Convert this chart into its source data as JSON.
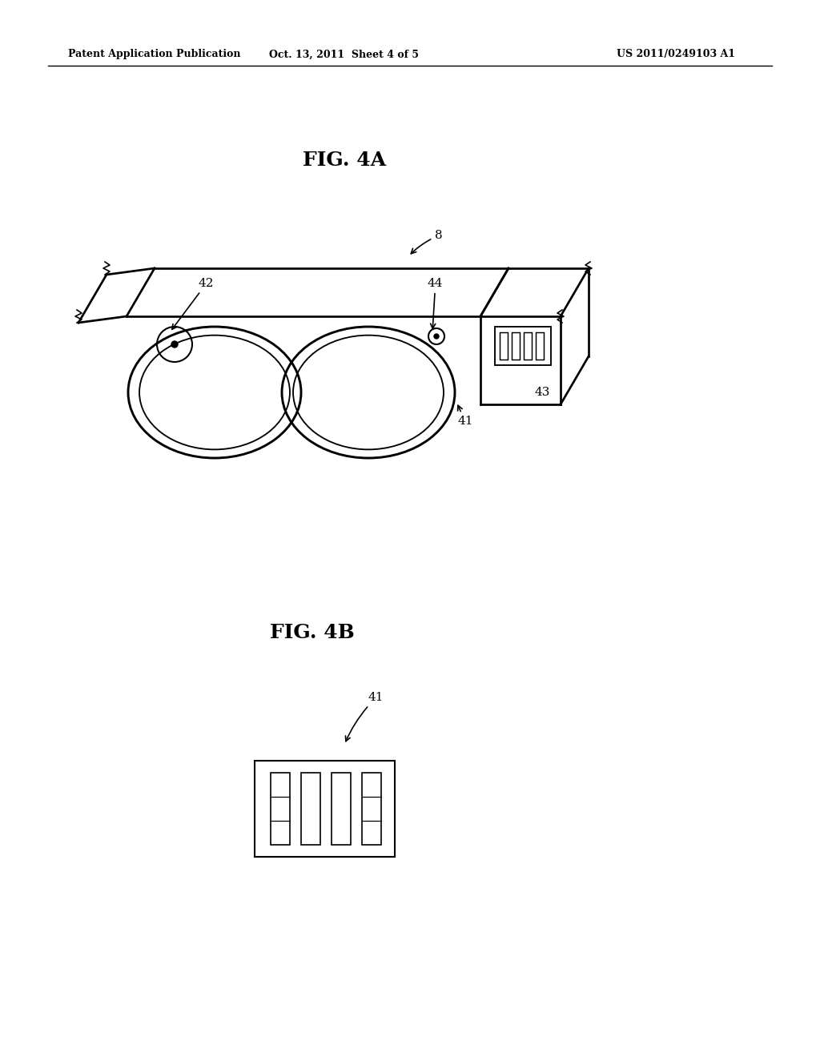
{
  "background_color": "#ffffff",
  "header_left": "Patent Application Publication",
  "header_center": "Oct. 13, 2011  Sheet 4 of 5",
  "header_right": "US 2011/0249103 A1",
  "fig4a_title": "FIG. 4A",
  "fig4b_title": "FIG. 4B"
}
